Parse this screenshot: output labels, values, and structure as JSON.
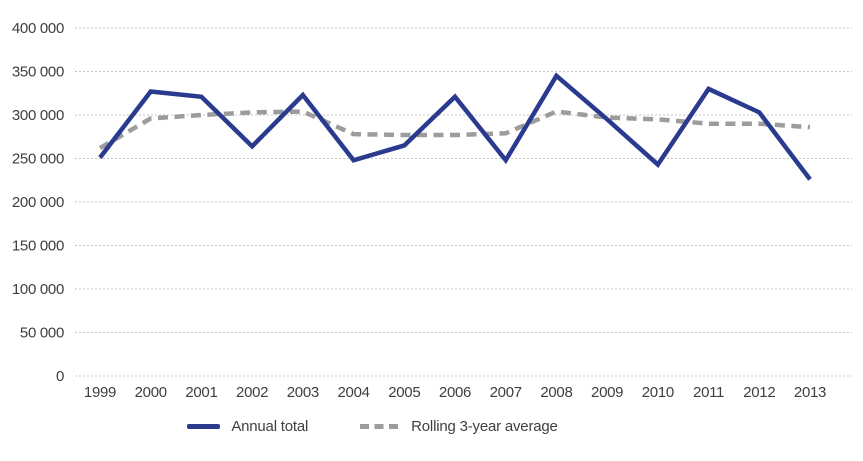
{
  "chart_data": {
    "type": "line",
    "title": "",
    "x_labels": [
      "1999",
      "2000",
      "2001",
      "2002",
      "2003",
      "2004",
      "2005",
      "2006",
      "2007",
      "2008",
      "2009",
      "2010",
      "2011",
      "2012",
      "2013"
    ],
    "series": [
      {
        "name": "Annual total",
        "color": "#2a3b8f",
        "style": "solid",
        "values": [
          251000,
          327000,
          321000,
          264000,
          323000,
          248000,
          265000,
          321000,
          248000,
          345000,
          295000,
          243000,
          330000,
          303000,
          226000
        ]
      },
      {
        "name": "Rolling 3-year average",
        "color": "#9c9c9c",
        "style": "dashed",
        "values": [
          262000,
          296000,
          300000,
          303000,
          304000,
          278000,
          277000,
          277000,
          279000,
          304000,
          297000,
          295000,
          290000,
          290000,
          286000
        ]
      }
    ],
    "ylim": [
      0,
      400000
    ],
    "ytick_step": 50000,
    "ytick_values": [
      0,
      50000,
      100000,
      150000,
      200000,
      250000,
      300000,
      350000,
      400000
    ],
    "ytick_labels": [
      "0",
      "50 000",
      "100 000",
      "150 000",
      "200 000",
      "250 000",
      "300 000",
      "350 000",
      "400 000"
    ],
    "grid": "horizontal dotted",
    "legend_position": "bottom-center"
  },
  "legend": {
    "items": [
      {
        "label": "Annual total",
        "swatch": "solid-line"
      },
      {
        "label": "Rolling 3-year average",
        "swatch": "dashed-line"
      }
    ]
  },
  "colors": {
    "annual_total": "#2a3b8f",
    "rolling_average": "#9c9c9c",
    "gridline": "#c4c4c4",
    "axis_text": "#3f3f3f",
    "background": "#ffffff"
  }
}
